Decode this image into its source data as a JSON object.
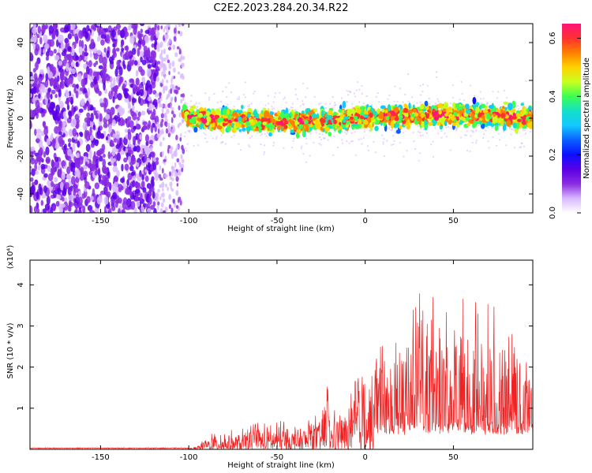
{
  "title": "C2E2.2023.284.20.34.R22",
  "colors": {
    "snr_line": "#ee2222",
    "colormap": [
      "#ffffff",
      "#d8b8ff",
      "#8a2be2",
      "#5a00e6",
      "#0a10ff",
      "#0a60ff",
      "#14c8ff",
      "#14e0c8",
      "#3cff50",
      "#c8ff20",
      "#ffd200",
      "#ff8000",
      "#ff3030",
      "#ff1478"
    ]
  },
  "chart_data": [
    {
      "type": "heatmap",
      "xlabel": "Height of straight line (km)",
      "ylabel": "Frequency (Hz)",
      "xlim": [
        -190,
        95
      ],
      "ylim": [
        -50,
        50
      ],
      "xticks": [
        -150,
        -100,
        -50,
        0,
        50
      ],
      "yticks": [
        -40,
        -20,
        0,
        20,
        40
      ],
      "colorbar": {
        "label": "Normalized spectral amplitude",
        "range": [
          0,
          0.65
        ],
        "ticks": [
          0.0,
          0.2,
          0.4,
          0.6
        ]
      },
      "segments": [
        {
          "x_range": [
            -190,
            -118
          ],
          "description_values": {
            "mean_frequency": 0,
            "amplitude": 0.2
          }
        },
        {
          "x_range": [
            -118,
            -103
          ],
          "description_values": {
            "mean_frequency": 0,
            "amplitude": 0.12
          }
        },
        {
          "x_range": [
            -103,
            95
          ],
          "description_values": {
            "mean_frequency": 0,
            "amplitude": 0.35
          }
        }
      ]
    },
    {
      "type": "line",
      "xlabel": "Height of straight line (km)",
      "ylabel": "SNR (10 * v/v)",
      "y_multiplier": "(x10⁴)",
      "xlim": [
        -190,
        95
      ],
      "ylim": [
        0,
        4.6
      ],
      "xticks": [
        -150,
        -100,
        -50,
        0,
        50
      ],
      "yticks": [
        1,
        2,
        3,
        4
      ],
      "envelope": {
        "x": [
          -190,
          -100,
          -95,
          -88,
          -80,
          -70,
          -60,
          -55,
          -50,
          -40,
          -30,
          -25,
          -22,
          -20,
          -15,
          -10,
          -5,
          0,
          5,
          8,
          10,
          20,
          25,
          30,
          33,
          35,
          40,
          45,
          50,
          55,
          60,
          65,
          70,
          75,
          80,
          85,
          90,
          95
        ],
        "y": [
          0.02,
          0.02,
          0.1,
          0.4,
          0.45,
          0.5,
          0.7,
          0.6,
          0.75,
          0.6,
          0.85,
          0.8,
          1.95,
          0.8,
          1.1,
          1.0,
          1.9,
          2.1,
          2.5,
          3.55,
          2.5,
          2.8,
          3.6,
          3.8,
          4.6,
          3.5,
          3.8,
          3.4,
          3.2,
          3.9,
          3.5,
          4.0,
          3.5,
          3.7,
          3.2,
          3.5,
          3.0,
          2.8
        ]
      }
    }
  ]
}
